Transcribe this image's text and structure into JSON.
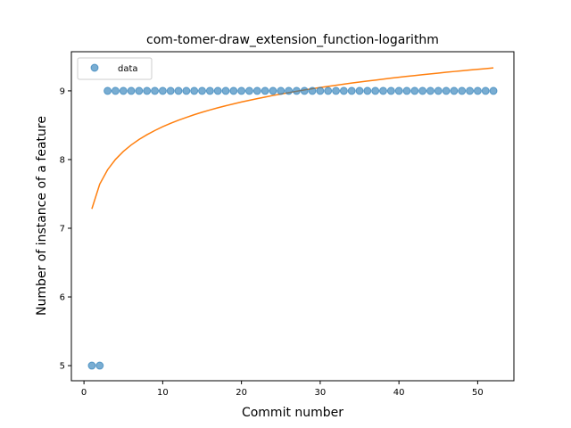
{
  "chart_data": {
    "type": "scatter",
    "title": "com-tomer-draw_extension_function-logarithm",
    "xlabel": "Commit number",
    "ylabel": "Number of instance of a feature",
    "xlim": [
      -1.6,
      54.6
    ],
    "ylim": [
      4.78,
      9.57
    ],
    "xticks": [
      0,
      10,
      20,
      30,
      40,
      50
    ],
    "yticks": [
      5,
      6,
      7,
      8,
      9
    ],
    "grid": false,
    "legend": {
      "position": "upper-left",
      "entries": [
        "data"
      ]
    },
    "colors": {
      "data": "#1f77b4",
      "fit": "#ff7f0e"
    },
    "series": [
      {
        "name": "data",
        "kind": "scatter",
        "x": [
          1,
          2,
          3,
          4,
          5,
          6,
          7,
          8,
          9,
          10,
          11,
          12,
          13,
          14,
          15,
          16,
          17,
          18,
          19,
          20,
          21,
          22,
          23,
          24,
          25,
          26,
          27,
          28,
          29,
          30,
          31,
          32,
          33,
          34,
          35,
          36,
          37,
          38,
          39,
          40,
          41,
          42,
          43,
          44,
          45,
          46,
          47,
          48,
          49,
          50,
          51,
          52
        ],
        "y": [
          5,
          5,
          9,
          9,
          9,
          9,
          9,
          9,
          9,
          9,
          9,
          9,
          9,
          9,
          9,
          9,
          9,
          9,
          9,
          9,
          9,
          9,
          9,
          9,
          9,
          9,
          9,
          9,
          9,
          9,
          9,
          9,
          9,
          9,
          9,
          9,
          9,
          9,
          9,
          9,
          9,
          9,
          9,
          9,
          9,
          9,
          9,
          9,
          9,
          9,
          9,
          9
        ]
      },
      {
        "kind": "line",
        "model": "logarithm",
        "coefficients": {
          "a": 0.5195,
          "b": 7.2817
        },
        "x": [
          1,
          2,
          3,
          4,
          5,
          6,
          7,
          8,
          9,
          10,
          11,
          12,
          13,
          14,
          15,
          16,
          17,
          18,
          19,
          20,
          21,
          22,
          23,
          24,
          25,
          26,
          27,
          28,
          29,
          30,
          31,
          32,
          33,
          34,
          35,
          36,
          37,
          38,
          39,
          40,
          41,
          42,
          43,
          44,
          45,
          46,
          47,
          48,
          49,
          50,
          51,
          52
        ],
        "y": [
          7.282,
          7.642,
          7.852,
          8.002,
          8.118,
          8.213,
          8.293,
          8.362,
          8.423,
          8.478,
          8.527,
          8.573,
          8.614,
          8.653,
          8.689,
          8.722,
          8.754,
          8.783,
          8.811,
          8.838,
          8.863,
          8.887,
          8.91,
          8.933,
          8.954,
          8.974,
          8.994,
          9.013,
          9.031,
          9.049,
          9.066,
          9.082,
          9.098,
          9.114,
          9.129,
          9.143,
          9.157,
          9.171,
          9.185,
          9.198,
          9.211,
          9.223,
          9.236,
          9.247,
          9.259,
          9.271,
          9.282,
          9.293,
          9.304,
          9.314,
          9.324,
          9.334
        ]
      }
    ]
  }
}
